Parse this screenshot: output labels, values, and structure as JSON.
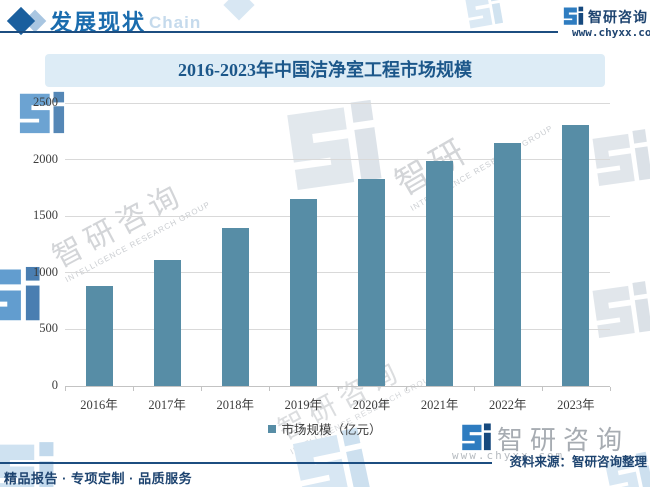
{
  "header": {
    "section_title": "发展现状",
    "watermark_word": "Chain",
    "brand_name": "智研咨询",
    "brand_url": "www.chyxx.com"
  },
  "chart_data": {
    "type": "bar",
    "title": "2016-2023年中国洁净室工程市场规模",
    "categories": [
      "2016年",
      "2017年",
      "2018年",
      "2019年",
      "2020年",
      "2021年",
      "2022年",
      "2023年"
    ],
    "values": [
      880,
      1115,
      1400,
      1655,
      1830,
      1985,
      2145,
      2310
    ],
    "series_name": "市场规模（亿元）",
    "unit": "亿元",
    "ylim": [
      0,
      2500
    ],
    "yticks": [
      0,
      500,
      1000,
      1500,
      2000,
      2500
    ],
    "grid": true,
    "legend_position": "bottom",
    "bar_color": "#578da6"
  },
  "legend": {
    "label": "市场规模（亿元）"
  },
  "footer": {
    "source_note": "资料来源：智研咨询整理",
    "tagline": "精品报告 · 专项定制 · 品质服务",
    "brand_name": "智研咨询",
    "brand_url": "www.chyxx.com"
  },
  "watermark": {
    "cn": "智研咨询",
    "cn_short": "智研",
    "en": "INTELLIGENCE RESEARCH GROUP"
  },
  "colors": {
    "bar": "#578da6",
    "accent_blue": "#1a6cae",
    "dark_navy": "#1c4d80",
    "title_bg": "#ddecf6",
    "gridline": "#d9d9d9"
  }
}
